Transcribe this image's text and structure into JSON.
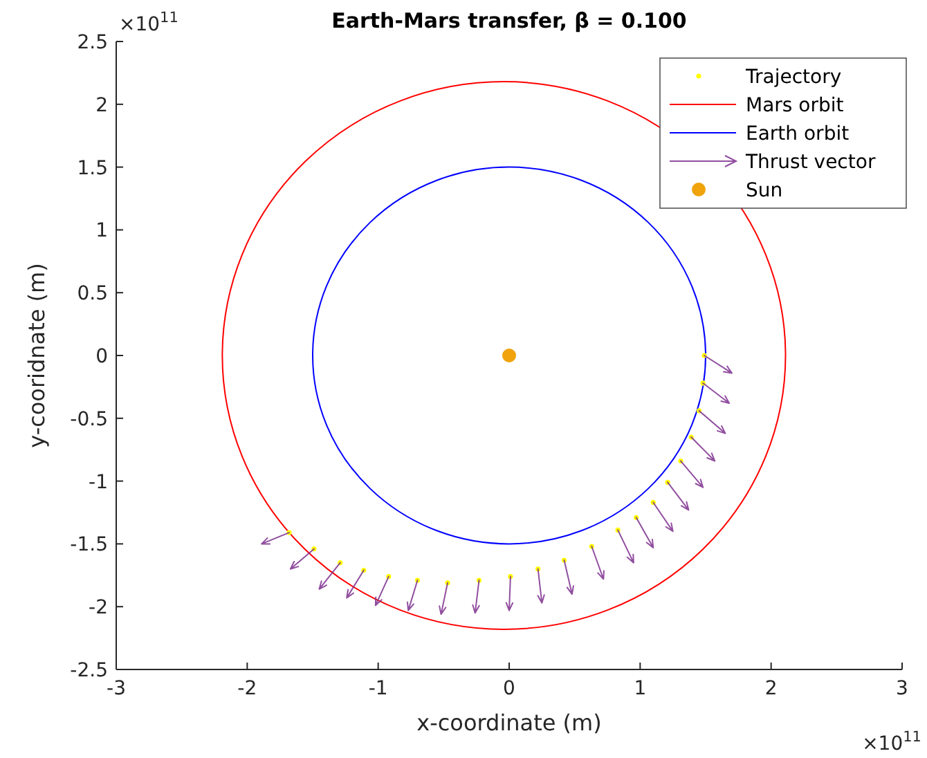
{
  "chart_data": {
    "type": "line",
    "title": "Earth-Mars transfer, β = 0.100",
    "xlabel": "x-coordinate (m)",
    "ylabel": "y-cooridnate (m)",
    "xlim": [
      -3,
      3
    ],
    "ylim": [
      -2.5,
      2.5
    ],
    "xticks": [
      -3,
      -2,
      -1,
      0,
      1,
      2,
      3
    ],
    "yticks": [
      -2.5,
      -2,
      -1.5,
      -1,
      -0.5,
      0,
      0.5,
      1,
      1.5,
      2,
      2.5
    ],
    "grid": false,
    "legend": "top right",
    "annotations": [
      "×10$^{11}$",
      "×10$^{11}$"
    ],
    "series": [
      {
        "name": "Trajectory",
        "type": "scatter",
        "marker": "circle",
        "color": "#ffff00",
        "x": [
          1.49,
          1.48,
          1.45,
          1.39,
          1.31,
          1.21,
          1.1,
          0.97,
          0.83,
          0.63,
          0.42,
          0.22,
          0.01,
          -0.23,
          -0.47,
          -0.7,
          -0.92,
          -1.11,
          -1.29,
          -1.49,
          -1.68
        ],
        "values": [
          0,
          -0.22,
          -0.44,
          -0.65,
          -0.84,
          -1.01,
          -1.17,
          -1.29,
          -1.39,
          -1.52,
          -1.63,
          -1.7,
          -1.76,
          -1.79,
          -1.81,
          -1.79,
          -1.76,
          -1.71,
          -1.65,
          -1.54,
          -1.41
        ]
      },
      {
        "name": "Mars orbit",
        "color": "#ff0000"
      },
      {
        "name": "Earth orbit",
        "color": "#0000ff"
      },
      {
        "name": "Thrust vector",
        "color": "#7e2f8e",
        "x": [
          1.49,
          1.7,
          null,
          1.48,
          1.68,
          null,
          1.45,
          1.65,
          null,
          1.39,
          1.57,
          null,
          1.31,
          1.48,
          null,
          1.21,
          1.37,
          null,
          1.1,
          1.25,
          null,
          0.97,
          1.1,
          null,
          0.83,
          0.95,
          null,
          0.63,
          0.72,
          null,
          0.42,
          0.48,
          null,
          0.22,
          0.25,
          null,
          0.01,
          0.0,
          null,
          -0.23,
          -0.26,
          null,
          -0.47,
          -0.52,
          null,
          -0.7,
          -0.77,
          null,
          -0.92,
          -1.02,
          null,
          -1.11,
          -1.24,
          null,
          -1.29,
          -1.45,
          null,
          -1.49,
          -1.67,
          null,
          -1.68,
          -1.89
        ],
        "values": [
          0,
          -0.14,
          null,
          -0.22,
          -0.38,
          null,
          -0.44,
          -0.62,
          null,
          -0.65,
          -0.84,
          null,
          -0.84,
          -1.05,
          null,
          -1.01,
          -1.23,
          null,
          -1.17,
          -1.4,
          null,
          -1.29,
          -1.53,
          null,
          -1.39,
          -1.65,
          null,
          -1.52,
          -1.78,
          null,
          -1.63,
          -1.9,
          null,
          -1.7,
          -1.97,
          null,
          -1.76,
          -2.03,
          null,
          -1.79,
          -2.05,
          null,
          -1.81,
          -2.06,
          null,
          -1.79,
          -2.03,
          null,
          -1.76,
          -1.99,
          null,
          -1.71,
          -1.93,
          null,
          -1.65,
          -1.86,
          null,
          -1.54,
          -1.7,
          null,
          -1.41,
          -1.5
        ]
      },
      {
        "name": "Sun",
        "type": "scatter",
        "marker": "circle",
        "color": "#f0a30a",
        "x": [
          0
        ],
        "values": [
          0
        ]
      }
    ]
  }
}
